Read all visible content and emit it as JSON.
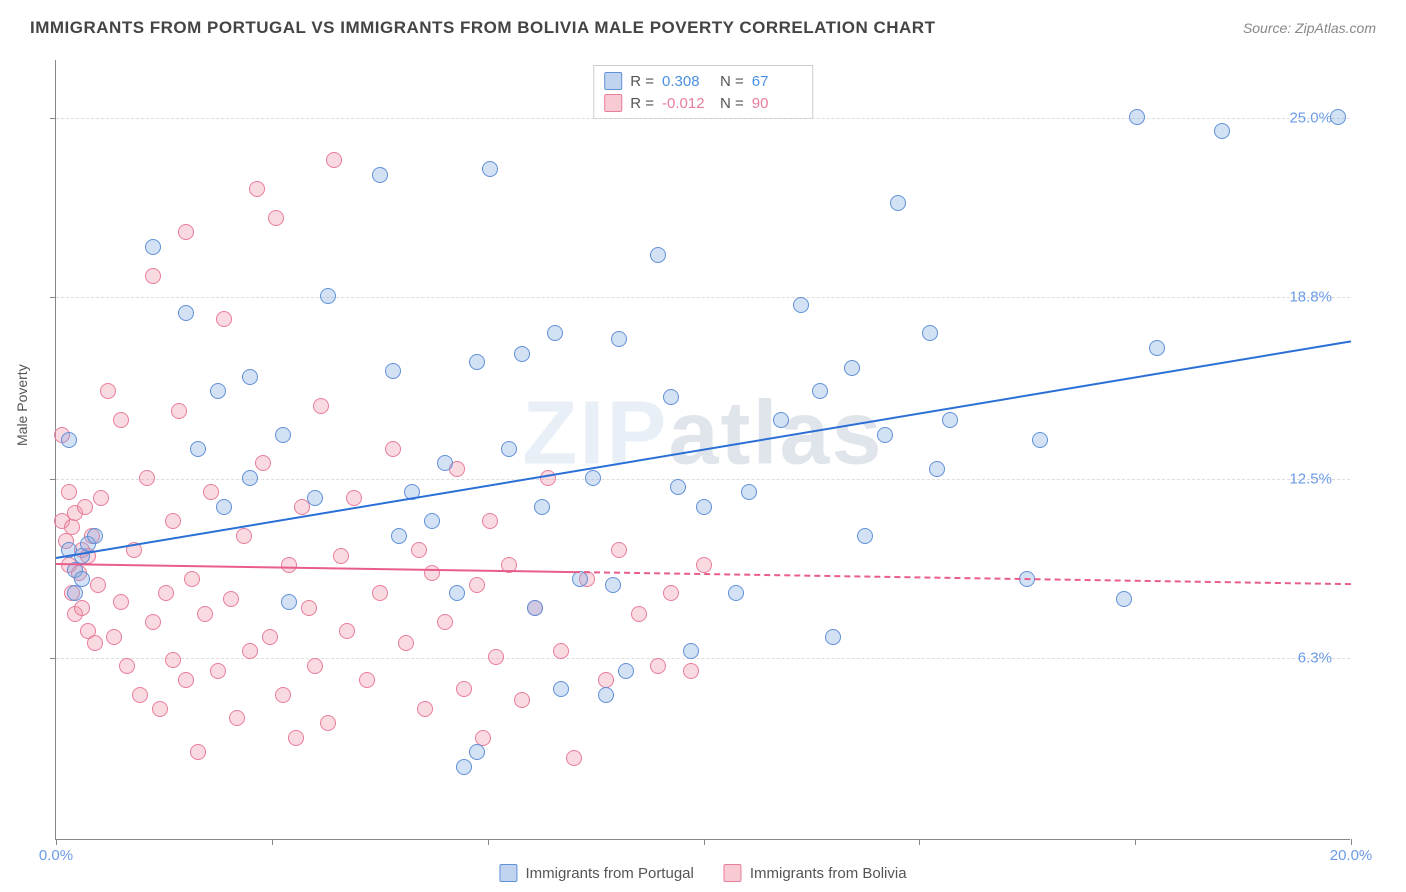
{
  "title": "IMMIGRANTS FROM PORTUGAL VS IMMIGRANTS FROM BOLIVIA MALE POVERTY CORRELATION CHART",
  "source": "Source: ZipAtlas.com",
  "watermark_a": "ZIP",
  "watermark_b": "atlas",
  "ylabel": "Male Poverty",
  "chart": {
    "type": "scatter",
    "xlim": [
      0,
      20
    ],
    "ylim": [
      0,
      27
    ],
    "xticks": [
      0,
      3.33,
      6.67,
      10,
      13.33,
      16.67,
      20
    ],
    "xtick_labels": {
      "0": "0.0%",
      "20": "20.0%"
    },
    "yticks": [
      6.3,
      12.5,
      18.8,
      25.0
    ],
    "ytick_labels": [
      "6.3%",
      "12.5%",
      "18.8%",
      "25.0%"
    ],
    "grid_color": "#dddddd",
    "background_color": "#ffffff",
    "series": [
      {
        "name": "Immigrants from Portugal",
        "color_fill": "rgba(130,170,225,0.35)",
        "color_stroke": "#6090d8",
        "R": "0.308",
        "N": "67",
        "trend": {
          "x0": 0,
          "y0": 9.8,
          "x1": 20,
          "y1": 17.3,
          "color": "#2a6fd6",
          "dash": false
        },
        "points": [
          [
            0.2,
            13.8
          ],
          [
            0.2,
            10.0
          ],
          [
            0.3,
            9.3
          ],
          [
            0.4,
            9.8
          ],
          [
            0.5,
            10.2
          ],
          [
            0.4,
            9.0
          ],
          [
            0.3,
            8.5
          ],
          [
            0.6,
            10.5
          ],
          [
            1.5,
            20.5
          ],
          [
            2.0,
            18.2
          ],
          [
            2.2,
            13.5
          ],
          [
            2.5,
            15.5
          ],
          [
            2.6,
            11.5
          ],
          [
            3.0,
            12.5
          ],
          [
            3.0,
            16.0
          ],
          [
            3.5,
            14.0
          ],
          [
            3.6,
            8.2
          ],
          [
            4.0,
            11.8
          ],
          [
            4.2,
            18.8
          ],
          [
            5.0,
            23.0
          ],
          [
            5.2,
            16.2
          ],
          [
            5.3,
            10.5
          ],
          [
            5.5,
            12.0
          ],
          [
            5.8,
            11.0
          ],
          [
            6.0,
            13.0
          ],
          [
            6.2,
            8.5
          ],
          [
            6.3,
            2.5
          ],
          [
            6.5,
            16.5
          ],
          [
            6.5,
            3.0
          ],
          [
            6.7,
            23.2
          ],
          [
            7.0,
            13.5
          ],
          [
            7.2,
            16.8
          ],
          [
            7.4,
            8.0
          ],
          [
            7.5,
            11.5
          ],
          [
            7.7,
            17.5
          ],
          [
            7.8,
            5.2
          ],
          [
            8.1,
            9.0
          ],
          [
            8.3,
            12.5
          ],
          [
            8.5,
            5.0
          ],
          [
            8.6,
            8.8
          ],
          [
            8.7,
            17.3
          ],
          [
            8.8,
            5.8
          ],
          [
            9.3,
            20.2
          ],
          [
            9.5,
            15.3
          ],
          [
            9.6,
            12.2
          ],
          [
            9.8,
            6.5
          ],
          [
            10.0,
            11.5
          ],
          [
            10.5,
            8.5
          ],
          [
            10.7,
            12.0
          ],
          [
            11.2,
            14.5
          ],
          [
            11.5,
            18.5
          ],
          [
            11.8,
            15.5
          ],
          [
            12.0,
            7.0
          ],
          [
            12.3,
            16.3
          ],
          [
            12.5,
            10.5
          ],
          [
            12.8,
            14.0
          ],
          [
            13.0,
            22.0
          ],
          [
            13.5,
            17.5
          ],
          [
            13.6,
            12.8
          ],
          [
            13.8,
            14.5
          ],
          [
            15.0,
            9.0
          ],
          [
            15.2,
            13.8
          ],
          [
            16.5,
            8.3
          ],
          [
            16.7,
            25.0
          ],
          [
            17.0,
            17.0
          ],
          [
            18.0,
            24.5
          ],
          [
            19.8,
            25.0
          ]
        ]
      },
      {
        "name": "Immigrants from Bolivia",
        "color_fill": "rgba(240,150,170,0.35)",
        "color_stroke": "#e87d9a",
        "R": "-0.012",
        "N": "90",
        "trend": {
          "x0": 0,
          "y0": 9.6,
          "x1": 20,
          "y1": 8.9,
          "color": "#e85d8a",
          "dash_from": 8.0
        },
        "points": [
          [
            0.1,
            14.0
          ],
          [
            0.1,
            11.0
          ],
          [
            0.15,
            10.3
          ],
          [
            0.2,
            12.0
          ],
          [
            0.2,
            9.5
          ],
          [
            0.25,
            10.8
          ],
          [
            0.25,
            8.5
          ],
          [
            0.3,
            11.3
          ],
          [
            0.3,
            7.8
          ],
          [
            0.35,
            9.2
          ],
          [
            0.4,
            10.0
          ],
          [
            0.4,
            8.0
          ],
          [
            0.45,
            11.5
          ],
          [
            0.5,
            7.2
          ],
          [
            0.5,
            9.8
          ],
          [
            0.55,
            10.5
          ],
          [
            0.6,
            6.8
          ],
          [
            0.65,
            8.8
          ],
          [
            0.7,
            11.8
          ],
          [
            0.8,
            15.5
          ],
          [
            0.9,
            7.0
          ],
          [
            1.0,
            14.5
          ],
          [
            1.0,
            8.2
          ],
          [
            1.1,
            6.0
          ],
          [
            1.2,
            10.0
          ],
          [
            1.3,
            5.0
          ],
          [
            1.4,
            12.5
          ],
          [
            1.5,
            7.5
          ],
          [
            1.5,
            19.5
          ],
          [
            1.6,
            4.5
          ],
          [
            1.7,
            8.5
          ],
          [
            1.8,
            11.0
          ],
          [
            1.8,
            6.2
          ],
          [
            1.9,
            14.8
          ],
          [
            2.0,
            21.0
          ],
          [
            2.0,
            5.5
          ],
          [
            2.1,
            9.0
          ],
          [
            2.2,
            3.0
          ],
          [
            2.3,
            7.8
          ],
          [
            2.4,
            12.0
          ],
          [
            2.5,
            5.8
          ],
          [
            2.6,
            18.0
          ],
          [
            2.7,
            8.3
          ],
          [
            2.8,
            4.2
          ],
          [
            2.9,
            10.5
          ],
          [
            3.0,
            6.5
          ],
          [
            3.1,
            22.5
          ],
          [
            3.2,
            13.0
          ],
          [
            3.3,
            7.0
          ],
          [
            3.4,
            21.5
          ],
          [
            3.5,
            5.0
          ],
          [
            3.6,
            9.5
          ],
          [
            3.7,
            3.5
          ],
          [
            3.8,
            11.5
          ],
          [
            3.9,
            8.0
          ],
          [
            4.0,
            6.0
          ],
          [
            4.1,
            15.0
          ],
          [
            4.2,
            4.0
          ],
          [
            4.3,
            23.5
          ],
          [
            4.4,
            9.8
          ],
          [
            4.5,
            7.2
          ],
          [
            4.6,
            11.8
          ],
          [
            4.8,
            5.5
          ],
          [
            5.0,
            8.5
          ],
          [
            5.2,
            13.5
          ],
          [
            5.4,
            6.8
          ],
          [
            5.6,
            10.0
          ],
          [
            5.7,
            4.5
          ],
          [
            5.8,
            9.2
          ],
          [
            6.0,
            7.5
          ],
          [
            6.2,
            12.8
          ],
          [
            6.3,
            5.2
          ],
          [
            6.5,
            8.8
          ],
          [
            6.6,
            3.5
          ],
          [
            6.7,
            11.0
          ],
          [
            6.8,
            6.3
          ],
          [
            7.0,
            9.5
          ],
          [
            7.2,
            4.8
          ],
          [
            7.4,
            8.0
          ],
          [
            7.6,
            12.5
          ],
          [
            7.8,
            6.5
          ],
          [
            8.0,
            2.8
          ],
          [
            8.2,
            9.0
          ],
          [
            8.5,
            5.5
          ],
          [
            8.7,
            10.0
          ],
          [
            9.0,
            7.8
          ],
          [
            9.3,
            6.0
          ],
          [
            9.5,
            8.5
          ],
          [
            9.8,
            5.8
          ],
          [
            10.0,
            9.5
          ]
        ]
      }
    ]
  },
  "legend": {
    "stat_label_r": "R =",
    "stat_label_n": "N ="
  }
}
